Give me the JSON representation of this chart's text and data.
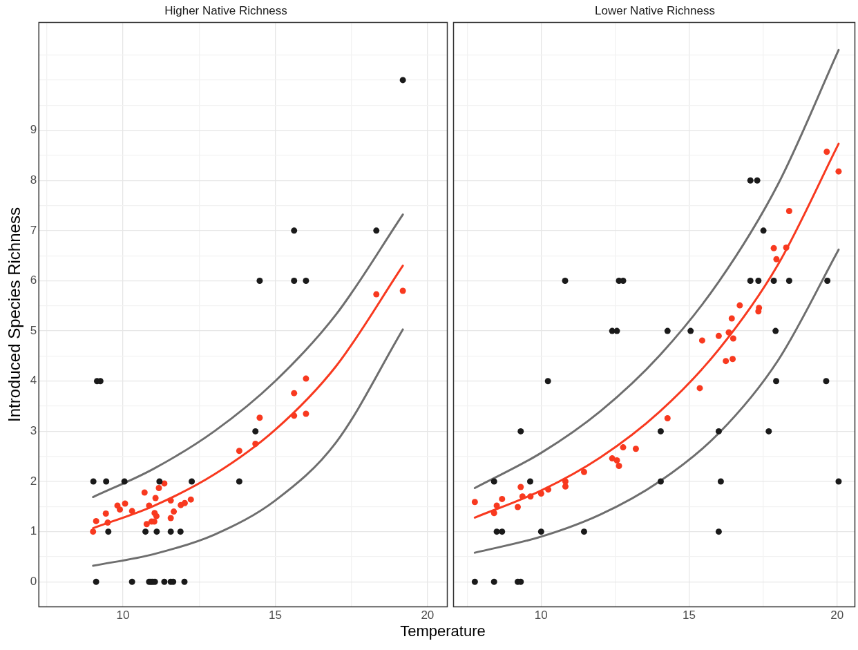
{
  "chart_data": [
    {
      "type": "scatter",
      "title": "Higher Native Richness",
      "xlabel": "Temperature",
      "ylabel": "Introduced Species Richness",
      "xlim": [
        7.24,
        20.65
      ],
      "ylim": [
        -0.5,
        11.15
      ],
      "xticks": [
        {
          "value": 7.5,
          "label": null
        },
        10,
        {
          "value": 12.5,
          "label": null
        },
        15,
        {
          "value": 17.5,
          "label": null
        },
        20
      ],
      "yticks": [
        {
          "value": -0.5,
          "label": null
        },
        0,
        {
          "value": 0.5,
          "label": null
        },
        1,
        {
          "value": 1.5,
          "label": null
        },
        2,
        {
          "value": 2.5,
          "label": null
        },
        3,
        {
          "value": 3.5,
          "label": null
        },
        4,
        {
          "value": 4.5,
          "label": null
        },
        5,
        {
          "value": 5.5,
          "label": null
        },
        6,
        {
          "value": 6.5,
          "label": null
        },
        7,
        {
          "value": 7.5,
          "label": null
        },
        8,
        {
          "value": 8.5,
          "label": null
        },
        9,
        {
          "value": 9.5,
          "label": null
        },
        {
          "value": 10,
          "label": null
        },
        {
          "value": 10.5,
          "label": null
        }
      ],
      "grid": true,
      "legend": false,
      "marker": "circle",
      "series": [
        {
          "type": "scatter",
          "color": "#1a1a1a",
          "x": [
            9.03,
            9.45,
            10.05,
            11.2,
            12.26,
            13.82,
            9.52,
            10.74,
            11.11,
            11.57,
            11.89,
            9.12,
            10.3,
            10.86,
            10.92,
            10.98,
            11.05,
            11.36,
            11.57,
            11.65,
            12.02,
            9.15,
            9.26,
            14.35,
            14.49,
            15.62,
            16.01,
            15.62,
            18.32,
            19.19
          ],
          "values": [
            2,
            2,
            2,
            2,
            2,
            2,
            1,
            1,
            1,
            1,
            1,
            0,
            0,
            0,
            0,
            0,
            0,
            0,
            0,
            0,
            0,
            4,
            4,
            3,
            6,
            6,
            6,
            7,
            7,
            10
          ]
        },
        {
          "type": "scatter",
          "color": "#f8391f",
          "x": [
            9.02,
            9.12,
            9.44,
            9.5,
            9.82,
            9.9,
            10.07,
            10.3,
            10.71,
            10.78,
            10.86,
            10.94,
            11.03,
            11.04,
            11.07,
            11.1,
            11.18,
            11.36,
            11.57,
            11.57,
            11.67,
            11.9,
            12.03,
            12.23,
            13.82,
            14.35,
            14.49,
            15.62,
            15.62,
            16.01,
            16.01,
            18.32,
            19.19
          ],
          "values": [
            1.0,
            1.21,
            1.36,
            1.18,
            1.52,
            1.44,
            1.56,
            1.41,
            1.78,
            1.15,
            1.52,
            1.2,
            1.2,
            1.37,
            1.67,
            1.31,
            1.87,
            1.96,
            1.62,
            1.27,
            1.4,
            1.53,
            1.57,
            1.64,
            2.61,
            2.75,
            3.27,
            3.76,
            3.31,
            4.05,
            3.35,
            5.73,
            5.8
          ]
        },
        {
          "type": "line",
          "color": "#f8391f",
          "marker": "none",
          "x": [
            9.02,
            11,
            13,
            15,
            17,
            19.19
          ],
          "values": [
            1.07,
            1.51,
            2.14,
            3.03,
            4.3,
            6.3
          ]
        },
        {
          "type": "line",
          "color": "#6e6e6e",
          "marker": "none",
          "x": [
            9.02,
            11,
            13,
            15,
            17,
            19.19
          ],
          "values": [
            1.69,
            2.25,
            3.0,
            4.0,
            5.33,
            7.32
          ]
        },
        {
          "type": "line",
          "color": "#6e6e6e",
          "marker": "none",
          "x": [
            9.02,
            11,
            13,
            15,
            17,
            19.19
          ],
          "values": [
            0.32,
            0.55,
            0.94,
            1.62,
            2.78,
            5.03
          ]
        }
      ]
    },
    {
      "type": "scatter",
      "title": "Lower Native Richness",
      "xlim": [
        7.04,
        20.6
      ],
      "ylim": [
        -0.5,
        11.15
      ],
      "tick_labels": "x",
      "xticks": [
        {
          "value": 7.5,
          "label": null
        },
        10,
        {
          "value": 12.5,
          "label": null
        },
        15,
        {
          "value": 17.5,
          "label": null
        },
        20
      ],
      "yticks": [
        {
          "value": -0.5,
          "label": null
        },
        0,
        {
          "value": 0.5,
          "label": null
        },
        1,
        {
          "value": 1.5,
          "label": null
        },
        2,
        {
          "value": 2.5,
          "label": null
        },
        3,
        {
          "value": 3.5,
          "label": null
        },
        4,
        {
          "value": 4.5,
          "label": null
        },
        5,
        {
          "value": 5.5,
          "label": null
        },
        6,
        {
          "value": 6.5,
          "label": null
        },
        7,
        {
          "value": 7.5,
          "label": null
        },
        8,
        {
          "value": 8.5,
          "label": null
        },
        9,
        {
          "value": 9.5,
          "label": null
        },
        {
          "value": 10,
          "label": null
        },
        {
          "value": 10.5,
          "label": null
        }
      ],
      "grid": true,
      "legend": false,
      "marker": "circle",
      "series": [
        {
          "type": "scatter",
          "color": "#1a1a1a",
          "x": [
            7.76,
            8.41,
            9.21,
            9.31,
            8.5,
            8.68,
            10.0,
            11.45,
            16.0,
            8.41,
            9.63,
            14.04,
            16.07,
            20.05,
            9.31,
            14.04,
            16.0,
            17.69,
            10.23,
            17.94,
            19.63,
            12.4,
            12.56,
            14.27,
            15.05,
            17.92,
            10.81,
            12.63,
            12.77,
            17.07,
            17.34,
            17.86,
            18.38,
            19.67,
            17.51,
            17.07,
            17.3
          ],
          "values": [
            0,
            0,
            0,
            0,
            1,
            1,
            1,
            1,
            1,
            2,
            2,
            2,
            2,
            2,
            3,
            3,
            3,
            3,
            4,
            4,
            4,
            5,
            5,
            5,
            5,
            5,
            6,
            6,
            6,
            6,
            6,
            6,
            6,
            6,
            7,
            8,
            8
          ]
        },
        {
          "type": "scatter",
          "color": "#f8391f",
          "x": [
            7.76,
            8.41,
            8.5,
            8.68,
            9.21,
            9.31,
            9.37,
            9.64,
            10.0,
            10.24,
            10.82,
            10.82,
            11.45,
            12.4,
            12.56,
            12.63,
            12.77,
            13.2,
            14.27,
            15.36,
            15.44,
            16.0,
            16.24,
            16.47,
            16.34,
            16.49,
            16.44,
            16.71,
            17.34,
            17.36,
            17.86,
            17.95,
            18.28,
            18.38,
            19.65,
            20.05
          ],
          "values": [
            1.59,
            1.37,
            1.52,
            1.65,
            1.49,
            1.89,
            1.7,
            1.7,
            1.76,
            1.84,
            1.9,
            2.0,
            2.19,
            2.46,
            2.42,
            2.31,
            2.68,
            2.65,
            3.26,
            3.86,
            4.81,
            4.9,
            4.4,
            4.44,
            4.97,
            4.85,
            5.25,
            5.51,
            5.39,
            5.46,
            6.65,
            6.43,
            6.66,
            7.39,
            8.57,
            8.18
          ]
        },
        {
          "type": "line",
          "color": "#f8391f",
          "marker": "none",
          "x": [
            7.76,
            10,
            12,
            14,
            16,
            18,
            20.05
          ],
          "values": [
            1.28,
            1.82,
            2.48,
            3.39,
            4.63,
            6.32,
            8.73
          ]
        },
        {
          "type": "line",
          "color": "#6e6e6e",
          "marker": "none",
          "x": [
            7.76,
            10,
            12,
            14,
            16,
            18,
            20.05
          ],
          "values": [
            1.87,
            2.57,
            3.4,
            4.51,
            5.98,
            7.92,
            10.6
          ]
        },
        {
          "type": "line",
          "color": "#6e6e6e",
          "marker": "none",
          "x": [
            7.76,
            10,
            12,
            14,
            16,
            18,
            20.05
          ],
          "values": [
            0.58,
            0.9,
            1.34,
            2.0,
            2.96,
            4.41,
            6.62
          ]
        }
      ]
    }
  ]
}
